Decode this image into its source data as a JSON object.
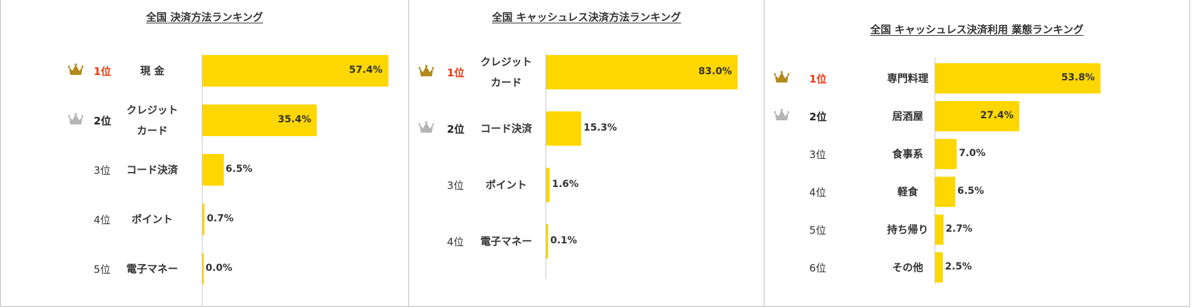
{
  "colors": {
    "bar": "#ffd700",
    "rank1_text": "#e8380d",
    "rank2_text": "#222222",
    "crown_gold": "#b38a1c",
    "crown_silver": "#b5b5b5"
  },
  "chart_data": [
    {
      "type": "bar",
      "orientation": "horizontal",
      "title": "全国 決済方法ランキング",
      "ranks": [
        "1位",
        "2位",
        "3位",
        "4位",
        "5位"
      ],
      "categories": [
        "現 金",
        "クレジット\nカード",
        "コード決済",
        "ポイント",
        "電子マネー"
      ],
      "values": [
        57.4,
        35.4,
        6.5,
        0.7,
        0.0
      ],
      "value_labels": [
        "57.4%",
        "35.4%",
        "6.5%",
        "0.7%",
        "0.0%"
      ],
      "unit": "%",
      "crowns": [
        "gold",
        "silver"
      ],
      "grid": false,
      "legend": "none"
    },
    {
      "type": "bar",
      "orientation": "horizontal",
      "title": "全国 キャッシュレス決済方法ランキング",
      "ranks": [
        "1位",
        "2位",
        "3位",
        "4位"
      ],
      "categories": [
        "クレジット\nカード",
        "コード決済",
        "ポイント",
        "電子マネー"
      ],
      "values": [
        83.0,
        15.3,
        1.6,
        0.1
      ],
      "value_labels": [
        "83.0%",
        "15.3%",
        "1.6%",
        "0.1%"
      ],
      "unit": "%",
      "crowns": [
        "gold",
        "silver"
      ],
      "grid": false,
      "legend": "none"
    },
    {
      "type": "bar",
      "orientation": "horizontal",
      "title": "全国 キャッシュレス決済利用 業態ランキング",
      "ranks": [
        "1位",
        "2位",
        "3位",
        "4位",
        "5位",
        "6位"
      ],
      "categories": [
        "専門料理",
        "居酒屋",
        "食事系",
        "軽食",
        "持ち帰り",
        "その他"
      ],
      "values": [
        53.8,
        27.4,
        7.0,
        6.5,
        2.7,
        2.5
      ],
      "value_labels": [
        "53.8%",
        "27.4%",
        "7.0%",
        "6.5%",
        "2.7%",
        "2.5%"
      ],
      "unit": "%",
      "crowns": [
        "gold",
        "silver"
      ],
      "grid": false,
      "legend": "none"
    }
  ]
}
